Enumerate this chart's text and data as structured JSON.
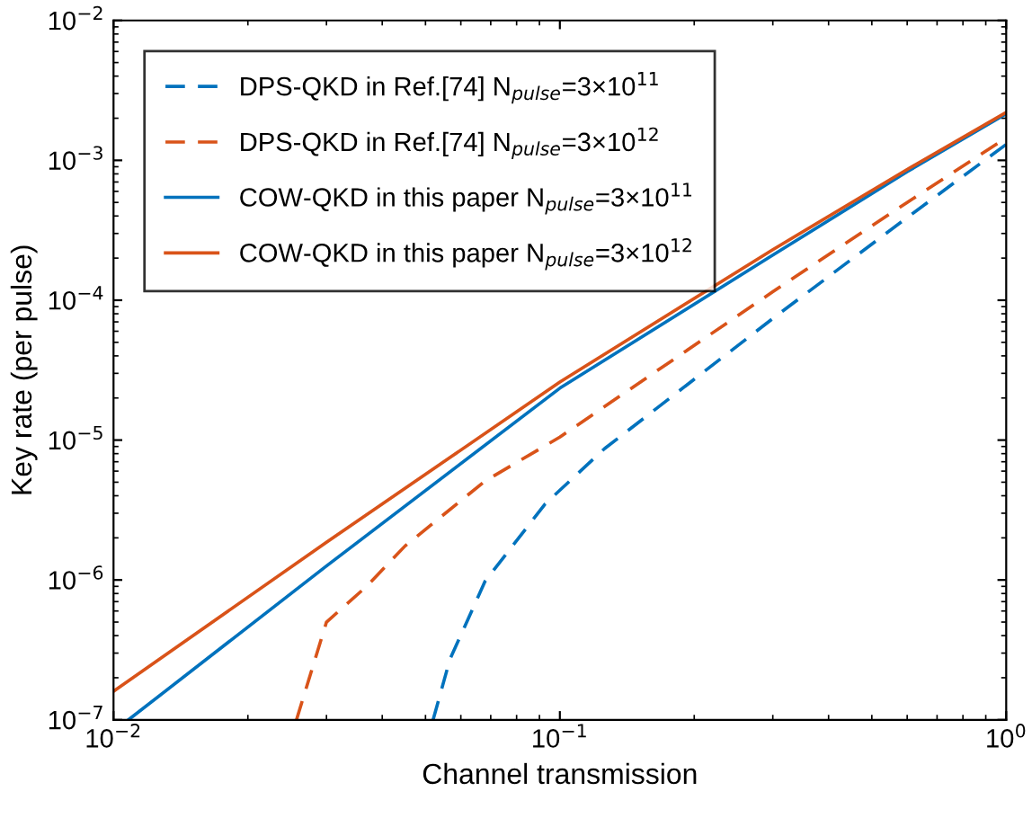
{
  "chart_data": {
    "type": "line",
    "xlabel": "Channel transmission",
    "ylabel": "Key rate (per pulse)",
    "log": "xy",
    "legend": "top left",
    "grid": false,
    "xlim": [
      0.01,
      1
    ],
    "ylim": [
      1e-07,
      0.01
    ],
    "xticks": [
      {
        "value": 0.01,
        "label": "10$^{−2}$"
      },
      {
        "value": 0.1,
        "label": "10$^{−1}$"
      },
      {
        "value": 1,
        "label": "10$^{0}$"
      }
    ],
    "yticks": [
      {
        "value": 1e-07,
        "label": "10$^{−7}$"
      },
      {
        "value": 1e-06,
        "label": "10$^{−6}$"
      },
      {
        "value": 1e-05,
        "label": "10$^{−5}$"
      },
      {
        "value": 0.0001,
        "label": "10$^{−4}$"
      },
      {
        "value": 0.001,
        "label": "10$^{−3}$"
      },
      {
        "value": 0.01,
        "label": "10$^{−2}$"
      }
    ],
    "series": [
      {
        "name": "DPS-QKD in Ref.[74] N$_{pulse}$=3×10$^{11}$",
        "color": "#0072bd",
        "line_style": "dashed",
        "x": [
          0.052,
          0.0567,
          0.068,
          0.0927,
          0.126,
          0.3,
          0.6,
          1
        ],
        "values": [
          1e-07,
          2.7e-07,
          9.8e-07,
          3.5e-06,
          8.7e-06,
          7.4e-05,
          0.00039,
          0.0013
        ]
      },
      {
        "name": "DPS-QKD in Ref.[74] N$_{pulse}$=3×10$^{12}$",
        "color": "#d95319",
        "line_style": "dashed",
        "x": [
          0.0257,
          0.03,
          0.0369,
          0.045,
          0.068,
          0.1,
          0.3,
          0.6,
          1
        ],
        "values": [
          1e-07,
          5e-07,
          9e-07,
          1.75e-06,
          5.1e-06,
          1.05e-05,
          0.000115,
          0.0005,
          0.00145
        ]
      },
      {
        "name": "COW-QKD in this paper N$_{pulse}$=3×10$^{11}$",
        "color": "#0072bd",
        "line_style": "solid",
        "x": [
          0.0108,
          0.03,
          0.1,
          0.3,
          0.6,
          1
        ],
        "values": [
          1e-07,
          1.26e-06,
          2.35e-05,
          0.00021,
          0.00083,
          0.00215
        ]
      },
      {
        "name": "COW-QKD in this paper N$_{pulse}$=3×10$^{12}$",
        "color": "#d95319",
        "line_style": "solid",
        "x": [
          0.01,
          0.03,
          0.1,
          0.3,
          0.6,
          1
        ],
        "values": [
          1.6e-07,
          1.86e-06,
          2.6e-05,
          0.00023,
          0.00086,
          0.0022
        ]
      }
    ]
  }
}
